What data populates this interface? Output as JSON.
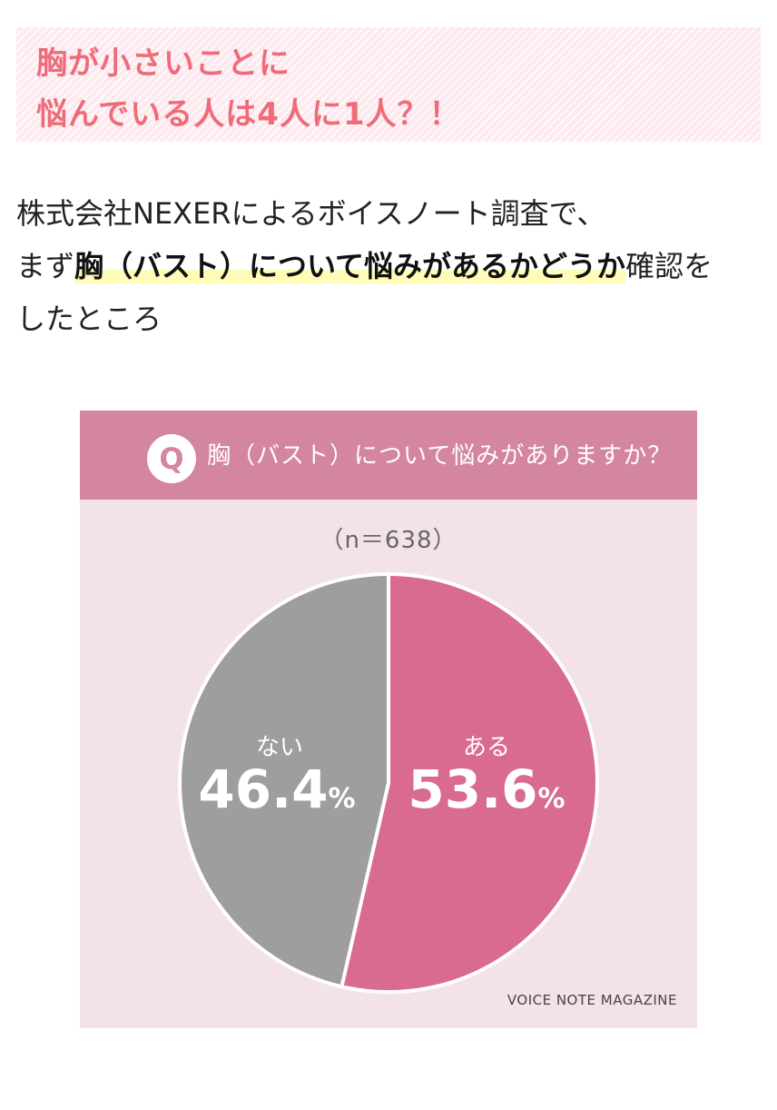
{
  "heading": {
    "line1": "胸が小さいことに",
    "line2": "悩んでいる人は4人に1人？！"
  },
  "paragraph": {
    "line1": "株式会社NEXERによるボイスノート調査で、",
    "line2_pre": "まず",
    "line2_highlight": "胸（バスト）について悩みがあるかどうか",
    "line2_post": "確認を",
    "line3": "したところ"
  },
  "chart_data": {
    "type": "pie",
    "title": "胸（バスト）について悩みがありますか？",
    "badge": "Q",
    "sample_size": "（n＝638）",
    "slices": [
      {
        "label": "ある",
        "value": 53.6,
        "value_text": "53.6",
        "color": "#d96a92"
      },
      {
        "label": "ない",
        "value": 46.4,
        "value_text": "46.4",
        "color": "#9e9e9e"
      }
    ],
    "unit": "%",
    "source": "VOICE NOTE MAGAZINE"
  },
  "colors": {
    "heading_text": "#f06b7a",
    "heading_bg": "#fde9ee",
    "highlight": "#fffcb8",
    "card_bg": "#f3e3e9",
    "header_bg": "#d4859f"
  }
}
